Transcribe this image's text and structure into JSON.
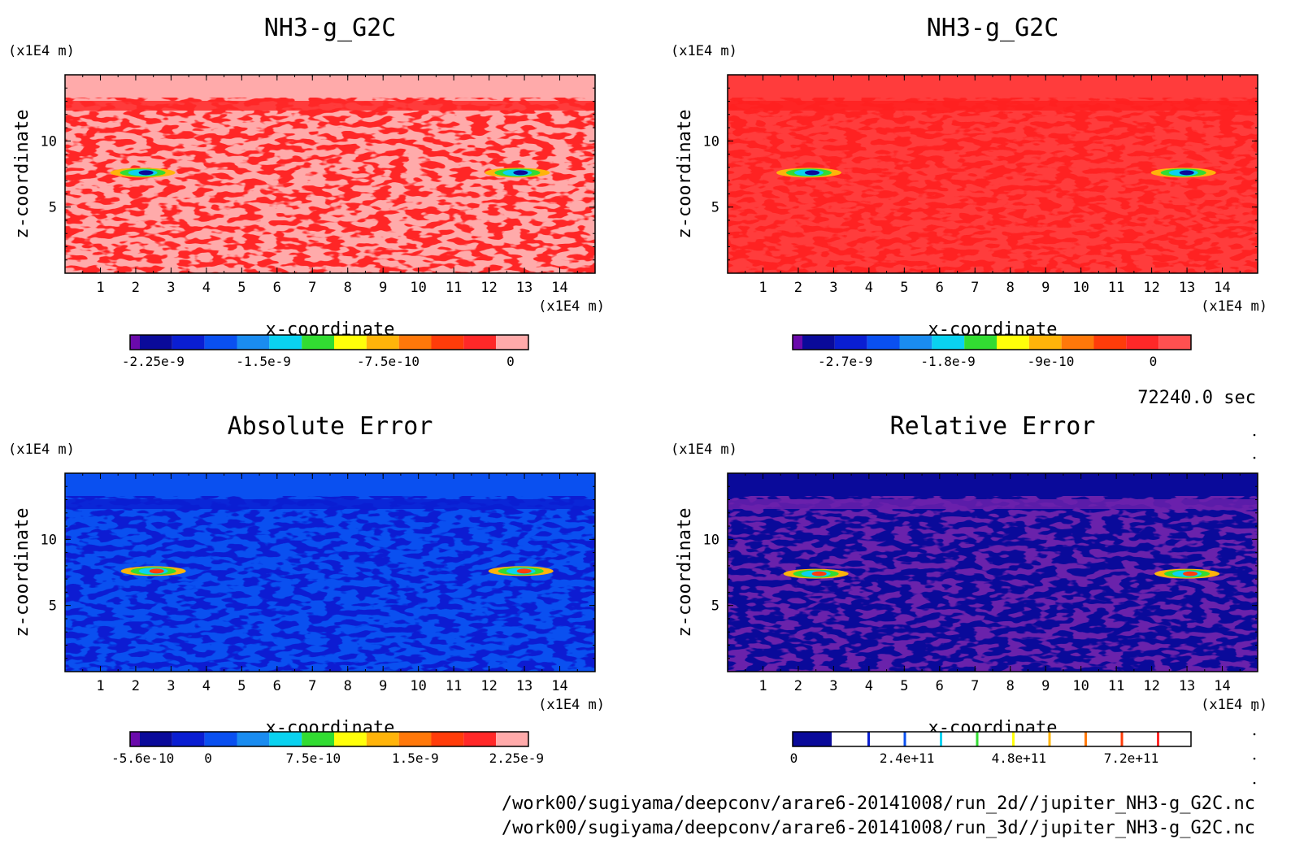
{
  "time_label": "72240.0 sec",
  "file_paths": [
    "/work00/sugiyama/deepconv/arare6-20141008/run_2d//jupiter_NH3-g_G2C.nc",
    "/work00/sugiyama/deepconv/arare6-20141008/run_3d//jupiter_NH3-g_G2C.nc"
  ],
  "palette": [
    "#6a0aab",
    "#0a0a9a",
    "#0a1ed2",
    "#0a50f0",
    "#1a8cf0",
    "#0ad2f0",
    "#32dc32",
    "#ffff0a",
    "#ffb40a",
    "#ff780a",
    "#ff3c0a",
    "#ff2828",
    "#ffaaaa"
  ],
  "chart_data": [
    {
      "type": "heatmap",
      "title": "NH3-g_G2C",
      "xlabel": "x-coordinate",
      "ylabel": "z-coordinate",
      "x_unit": "(x1E4 m)",
      "y_unit": "(x1E4 m)",
      "xlim": [
        0,
        15
      ],
      "ylim": [
        0,
        15
      ],
      "x_ticks": [
        "1",
        "2",
        "3",
        "4",
        "5",
        "6",
        "7",
        "8",
        "9",
        "10",
        "11",
        "12",
        "13",
        "14"
      ],
      "y_ticks": [
        "5",
        "10"
      ],
      "background": "#ffaaaa",
      "noise_color": "#ff2828",
      "colorbar": {
        "labels": [
          "-2.25e-9",
          "-1.5e-9",
          "-7.5e-10",
          "0"
        ],
        "label_positions": [
          0.058,
          0.335,
          0.648,
          0.955
        ],
        "colors": [
          "#6a0aab",
          "#0a0a9a",
          "#0a1ed2",
          "#0a50f0",
          "#1a8cf0",
          "#0ad2f0",
          "#32dc32",
          "#ffff0a",
          "#ffb40a",
          "#ff780a",
          "#ff3c0a",
          "#ff2828",
          "#ffaaaa"
        ]
      },
      "features": [
        {
          "x": 2.2,
          "z": 7.6
        },
        {
          "x": 12.8,
          "z": 7.6
        }
      ]
    },
    {
      "type": "heatmap",
      "title": "NH3-g_G2C",
      "xlabel": "x-coordinate",
      "ylabel": "z-coordinate",
      "x_unit": "(x1E4 m)",
      "y_unit": "(x1E4 m)",
      "xlim": [
        0,
        15
      ],
      "ylim": [
        0,
        15
      ],
      "x_ticks": [
        "1",
        "2",
        "3",
        "4",
        "5",
        "6",
        "7",
        "8",
        "9",
        "10",
        "11",
        "12",
        "13",
        "14"
      ],
      "y_ticks": [
        "5",
        "10"
      ],
      "background": "#ff3c3c",
      "noise_color": "#ff2020",
      "colorbar": {
        "labels": [
          "-2.7e-9",
          "-1.8e-9",
          "-9e-10",
          "0"
        ],
        "label_positions": [
          0.132,
          0.39,
          0.648,
          0.905
        ],
        "colors": [
          "#6a0aab",
          "#0a0a9a",
          "#0a1ed2",
          "#0a50f0",
          "#1a8cf0",
          "#0ad2f0",
          "#32dc32",
          "#ffff0a",
          "#ffb40a",
          "#ff780a",
          "#ff3c0a",
          "#ff2828",
          "#ff5050"
        ]
      },
      "features": [
        {
          "x": 2.3,
          "z": 7.6
        },
        {
          "x": 12.9,
          "z": 7.6
        }
      ]
    },
    {
      "type": "heatmap",
      "title": "Absolute Error",
      "xlabel": "x-coordinate",
      "ylabel": "z-coordinate",
      "x_unit": "(x1E4 m)",
      "y_unit": "(x1E4 m)",
      "xlim": [
        0,
        15
      ],
      "ylim": [
        0,
        15
      ],
      "x_ticks": [
        "1",
        "2",
        "3",
        "4",
        "5",
        "6",
        "7",
        "8",
        "9",
        "10",
        "11",
        "12",
        "13",
        "14"
      ],
      "y_ticks": [
        "5",
        "10"
      ],
      "background": "#0a50f0",
      "noise_color": "#0a1ed2",
      "colorbar": {
        "labels": [
          "-5.6e-10",
          "0",
          "7.5e-10",
          "1.5e-9",
          "2.25e-9"
        ],
        "label_positions": [
          0.032,
          0.196,
          0.46,
          0.716,
          0.97
        ],
        "colors": [
          "#6a0aab",
          "#0a0a9a",
          "#0a1ed2",
          "#0a50f0",
          "#1a8cf0",
          "#0ad2f0",
          "#32dc32",
          "#ffff0a",
          "#ffb40a",
          "#ff780a",
          "#ff3c0a",
          "#ff2828",
          "#ffaaaa"
        ]
      },
      "features": [
        {
          "x": 2.5,
          "z": 7.6
        },
        {
          "x": 12.9,
          "z": 7.6
        }
      ]
    },
    {
      "type": "heatmap",
      "title": "Relative Error",
      "xlabel": "x-coordinate",
      "ylabel": "z-coordinate",
      "x_unit": "(x1E4 m)",
      "y_unit": "(x1E4 m)",
      "xlim": [
        0,
        15
      ],
      "ylim": [
        0,
        15
      ],
      "x_ticks": [
        "1",
        "2",
        "3",
        "4",
        "5",
        "6",
        "7",
        "8",
        "9",
        "10",
        "11",
        "12",
        "13",
        "14"
      ],
      "y_ticks": [
        "5",
        "10"
      ],
      "background": "#0a0a9a",
      "noise_color": "#6a20ab",
      "colorbar": {
        "labels": [
          "0",
          "2.4e+11",
          "4.8e+11",
          "7.2e+11"
        ],
        "label_positions": [
          0.003,
          0.287,
          0.568,
          0.85
        ],
        "colors": [
          "#0a0a9a",
          "#0a0a9a",
          "#ffffff",
          "#ffffff",
          "#ffffff",
          "#ffffff",
          "#ffffff",
          "#ffffff",
          "#ffffff",
          "#ffffff",
          "#ffffff",
          "#ffffff",
          "#ffffff"
        ],
        "stripe_colors": [
          "#0a1ed2",
          "#0a50f0",
          "#0ad2f0",
          "#32dc32",
          "#ffff0a",
          "#ffb40a",
          "#ff780a",
          "#ff3c0a",
          "#ff2828"
        ]
      },
      "features": [
        {
          "x": 2.5,
          "z": 7.4
        },
        {
          "x": 13.0,
          "z": 7.4
        }
      ]
    }
  ]
}
